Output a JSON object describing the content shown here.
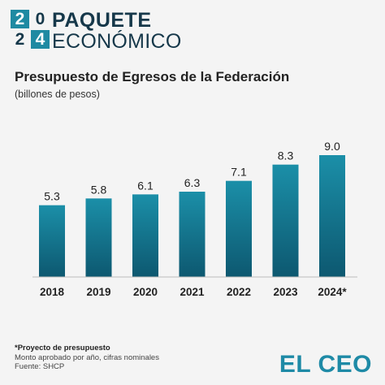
{
  "header": {
    "year_digits": [
      "2",
      "0",
      "2",
      "4"
    ],
    "line1": "PAQUETE",
    "line2": "ECONÓMICO"
  },
  "footnote": {
    "note": "*Proyecto de presupuesto",
    "detail": "Monto aprobado por año, cifras nominales",
    "source": "Fuente: SHCP"
  },
  "brand": "EL CEO",
  "colors": {
    "bar_top": "#1b8fa8",
    "bar_bottom": "#0d5870",
    "background": "#f4f4f4"
  },
  "chart_data": {
    "type": "bar",
    "title": "Presupuesto de Egresos de la Federación",
    "subtitle": "(billones de pesos)",
    "categories": [
      "2018",
      "2019",
      "2020",
      "2021",
      "2022",
      "2023",
      "2024*"
    ],
    "values": [
      5.3,
      5.8,
      6.1,
      6.3,
      7.1,
      8.3,
      9.0
    ],
    "value_labels": [
      "5.3",
      "5.8",
      "6.1",
      "6.3",
      "7.1",
      "8.3",
      "9.0"
    ],
    "xlabel": "",
    "ylabel": "",
    "ylim": [
      0,
      9.0
    ],
    "grid": false,
    "legend": "none"
  }
}
